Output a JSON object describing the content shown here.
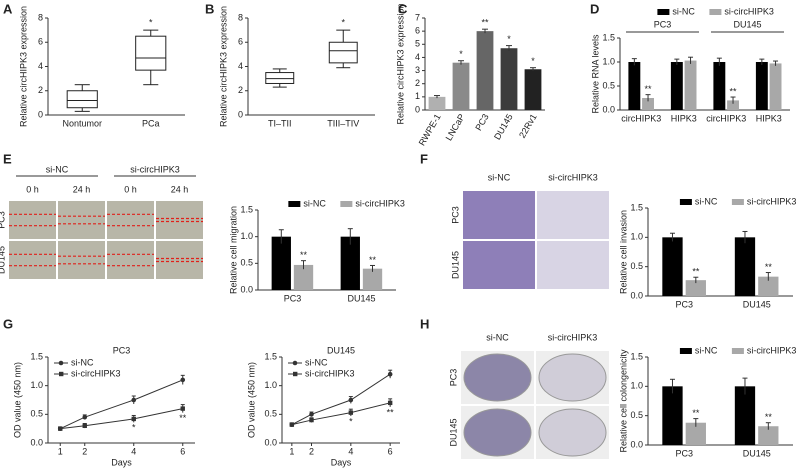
{
  "panel_letters": [
    "A",
    "B",
    "C",
    "D",
    "E",
    "F",
    "G",
    "H"
  ],
  "photos": {
    "E": {
      "column_headers": [
        "si-NC",
        "si-circHIPK3"
      ],
      "time_labels": [
        "0 h",
        "24 h",
        "0 h",
        "24 h"
      ],
      "row_labels": [
        "PC3",
        "DU145"
      ]
    },
    "F": {
      "column_headers": [
        "si-NC",
        "si-circHIPK3"
      ],
      "row_labels": [
        "PC3",
        "DU145"
      ]
    },
    "H": {
      "column_headers": [
        "si-NC",
        "si-circHIPK3"
      ],
      "row_labels": [
        "PC3",
        "DU145"
      ]
    }
  },
  "chart_data": [
    {
      "type": "box",
      "ylabel": "Relative circHIPK3 expression",
      "categories": [
        "Nontumor",
        "PCa"
      ],
      "boxes": [
        {
          "min": 0.3,
          "q1": 0.6,
          "median": 1.2,
          "q3": 2,
          "max": 2.5
        },
        {
          "min": 2.5,
          "q1": 3.7,
          "median": 4.7,
          "q3": 6.5,
          "max": 7
        }
      ],
      "annotations": [
        null,
        "*"
      ],
      "ylim": [
        0,
        8
      ],
      "yticks": [
        0,
        2,
        4,
        6,
        8
      ]
    },
    {
      "type": "box",
      "ylabel": "Relative circHIPK3 expression",
      "categories": [
        "TI–TII",
        "TIII–TIV"
      ],
      "boxes": [
        {
          "min": 2.3,
          "q1": 2.6,
          "median": 3,
          "q3": 3.5,
          "max": 3.8
        },
        {
          "min": 3.9,
          "q1": 4.3,
          "median": 5.3,
          "q3": 6,
          "max": 7
        }
      ],
      "annotations": [
        null,
        "*"
      ],
      "ylim": [
        0,
        8
      ],
      "yticks": [
        0,
        2,
        4,
        6,
        8
      ]
    },
    {
      "type": "bar",
      "ylabel": "Relative circHIPK3 expression",
      "categories": [
        "RWPE-1",
        "LNCaP",
        "PC3",
        "DU145",
        "22Rv1"
      ],
      "values": [
        1,
        3.6,
        6,
        4.7,
        3.1
      ],
      "errors": [
        0.1,
        0.15,
        0.15,
        0.2,
        0.12
      ],
      "annotations": [
        null,
        "*",
        "**",
        "*",
        "*"
      ],
      "colors": [
        "#b0b0b0",
        "#8a8a8a",
        "#666666",
        "#3c3c3c",
        "#222222"
      ],
      "ylim": [
        0,
        7
      ],
      "yticks": [
        0,
        1,
        2,
        3,
        4,
        5,
        6,
        7
      ]
    },
    {
      "type": "bar",
      "ylabel": "Relative RNA levels",
      "categories": [
        "circHIPK3",
        "HIPK3",
        "circHIPK3",
        "HIPK3"
      ],
      "groups": [
        "PC3",
        "DU145"
      ],
      "series": [
        {
          "name": "si-NC",
          "color": "#000000",
          "values": [
            1,
            1,
            1,
            1
          ],
          "errors": [
            0.07,
            0.06,
            0.08,
            0.06
          ],
          "annotations": [
            null,
            null,
            null,
            null
          ]
        },
        {
          "name": "si-circHIPK3",
          "color": "#a8a8a8",
          "values": [
            0.25,
            1.03,
            0.2,
            0.97
          ],
          "errors": [
            0.07,
            0.07,
            0.07,
            0.05
          ],
          "annotations": [
            "**",
            null,
            "**",
            null
          ]
        }
      ],
      "legend": "top",
      "ylim": [
        0,
        1.5
      ],
      "yticks": [
        {
          "value": 0,
          "label": "0.0"
        },
        0.5,
        {
          "value": 1,
          "label": "1.0"
        },
        1.5
      ]
    },
    {
      "type": "bar",
      "ylabel": "Relative cell migration",
      "categories": [
        "PC3",
        "DU145"
      ],
      "series": [
        {
          "name": "si-NC",
          "color": "#000000",
          "values": [
            1,
            1
          ],
          "errors": [
            0.13,
            0.15
          ],
          "annotations": [
            null,
            null
          ]
        },
        {
          "name": "si-circHIPK3",
          "color": "#a8a8a8",
          "values": [
            0.47,
            0.4
          ],
          "errors": [
            0.08,
            0.06
          ],
          "annotations": [
            "**",
            "**"
          ]
        }
      ],
      "legend": "top",
      "ylim": [
        0,
        1.5
      ],
      "yticks": [
        {
          "value": 0,
          "label": "0.0"
        },
        0.5,
        {
          "value": 1,
          "label": "1.0"
        },
        1.5
      ]
    },
    {
      "type": "bar",
      "ylabel": "Relative cell invasion",
      "categories": [
        "PC3",
        "DU145"
      ],
      "series": [
        {
          "name": "si-NC",
          "color": "#000000",
          "values": [
            1,
            1
          ],
          "errors": [
            0.07,
            0.1
          ],
          "annotations": [
            null,
            null
          ]
        },
        {
          "name": "si-circHIPK3",
          "color": "#a8a8a8",
          "values": [
            0.27,
            0.33
          ],
          "errors": [
            0.05,
            0.07
          ],
          "annotations": [
            "**",
            "**"
          ]
        }
      ],
      "legend": "top",
      "ylim": [
        0,
        1.5
      ],
      "yticks": [
        {
          "value": 0,
          "label": "0.0"
        },
        0.5,
        {
          "value": 1,
          "label": "1.0"
        },
        1.5
      ]
    },
    {
      "type": "line",
      "title": "PC3",
      "ylabel": "OD value (450 nm)",
      "xlabel": "Days",
      "x": [
        1,
        2,
        4,
        6
      ],
      "series": [
        {
          "name": "si-NC",
          "color": "#333333",
          "marker": "circle",
          "values": [
            0.25,
            0.45,
            0.75,
            1.1
          ],
          "errors": [
            0.03,
            0.04,
            0.07,
            0.08
          ],
          "annotations": [
            null,
            null,
            null,
            null
          ]
        },
        {
          "name": "si-circHIPK3",
          "color": "#333333",
          "marker": "square",
          "values": [
            0.25,
            0.3,
            0.42,
            0.6
          ],
          "errors": [
            0.03,
            0.04,
            0.06,
            0.07
          ],
          "annotations": [
            null,
            null,
            "*",
            "**"
          ]
        }
      ],
      "legend": "upper left",
      "xlim": [
        0.5,
        6.5
      ],
      "xticks": [
        1,
        2,
        4,
        6
      ],
      "ylim": [
        0,
        1.5
      ],
      "yticks": [
        {
          "value": 0,
          "label": "0.0"
        },
        0.5,
        {
          "value": 1,
          "label": "1.0"
        },
        1.5
      ]
    },
    {
      "type": "line",
      "title": "DU145",
      "ylabel": "OD value (450 nm)",
      "xlabel": "Days",
      "x": [
        1,
        2,
        4,
        6
      ],
      "series": [
        {
          "name": "si-NC",
          "color": "#333333",
          "marker": "circle",
          "values": [
            0.32,
            0.5,
            0.75,
            1.2
          ],
          "errors": [
            0.03,
            0.04,
            0.06,
            0.07
          ],
          "annotations": [
            null,
            null,
            null,
            null
          ]
        },
        {
          "name": "si-circHIPK3",
          "color": "#333333",
          "marker": "square",
          "values": [
            0.32,
            0.4,
            0.53,
            0.7
          ],
          "errors": [
            0.03,
            0.04,
            0.06,
            0.07
          ],
          "annotations": [
            null,
            null,
            "*",
            "**"
          ]
        }
      ],
      "legend": "upper left",
      "xlim": [
        0.5,
        6.5
      ],
      "xticks": [
        1,
        2,
        4,
        6
      ],
      "ylim": [
        0,
        1.5
      ],
      "yticks": [
        {
          "value": 0,
          "label": "0.0"
        },
        0.5,
        {
          "value": 1,
          "label": "1.0"
        },
        1.5
      ]
    },
    {
      "type": "bar",
      "ylabel": "Relative cell colongenicity",
      "categories": [
        "PC3",
        "DU145"
      ],
      "series": [
        {
          "name": "si-NC",
          "color": "#000000",
          "values": [
            1,
            1
          ],
          "errors": [
            0.12,
            0.14
          ],
          "annotations": [
            null,
            null
          ]
        },
        {
          "name": "si-circHIPK3",
          "color": "#a8a8a8",
          "values": [
            0.38,
            0.32
          ],
          "errors": [
            0.07,
            0.06
          ],
          "annotations": [
            "**",
            "**"
          ]
        }
      ],
      "legend": "top",
      "ylim": [
        0,
        1.5
      ],
      "yticks": [
        {
          "value": 0,
          "label": "0.0"
        },
        0.5,
        {
          "value": 1,
          "label": "1.0"
        },
        1.5
      ]
    }
  ]
}
